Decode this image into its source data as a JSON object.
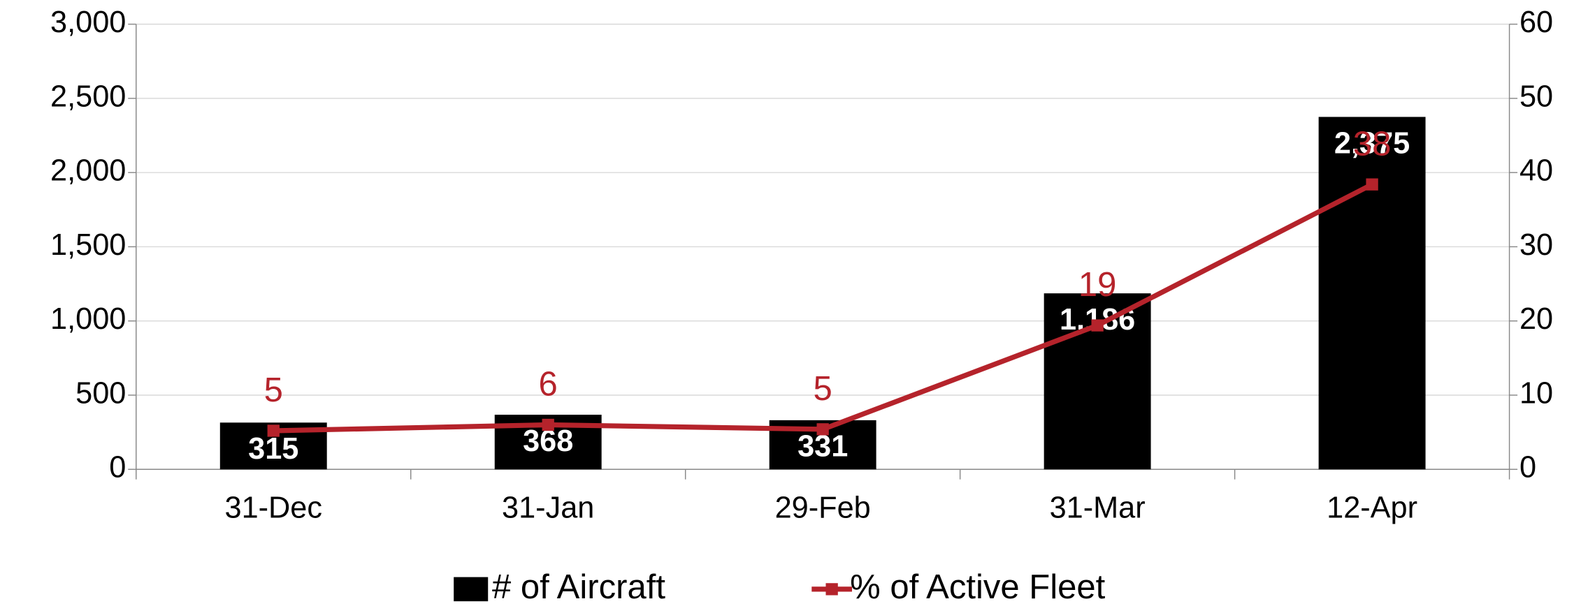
{
  "chart_data": {
    "type": "bar",
    "categories": [
      "31-Dec",
      "31-Jan",
      "29-Feb",
      "31-Mar",
      "12-Apr"
    ],
    "series": [
      {
        "name": "# of Aircraft",
        "type": "bar",
        "color": "#000000",
        "values": [
          315,
          368,
          331,
          1186,
          2375
        ],
        "value_labels": [
          "315",
          "368",
          "331",
          "1,186",
          "2,375"
        ]
      },
      {
        "name": "% of Active Fleet",
        "type": "line",
        "axis": "y2",
        "color": "#b5232b",
        "values": [
          5.2,
          6.0,
          5.4,
          19.4,
          38.4
        ],
        "value_labels": [
          "5",
          "6",
          "5",
          "19",
          "38"
        ]
      }
    ],
    "ylim": [
      0,
      3000
    ],
    "yticks": [
      0,
      500,
      {
        "value": 1000,
        "label": "1,000"
      },
      {
        "value": 1500,
        "label": "1,500"
      },
      {
        "value": 2000,
        "label": "2,000"
      },
      {
        "value": 2500,
        "label": "2,500"
      },
      {
        "value": 3000,
        "label": "3,000"
      }
    ],
    "y2lim": [
      0,
      60
    ],
    "y2ticks": [
      0,
      10,
      20,
      30,
      40,
      50,
      60
    ],
    "grid": true,
    "legend": "bottom"
  }
}
